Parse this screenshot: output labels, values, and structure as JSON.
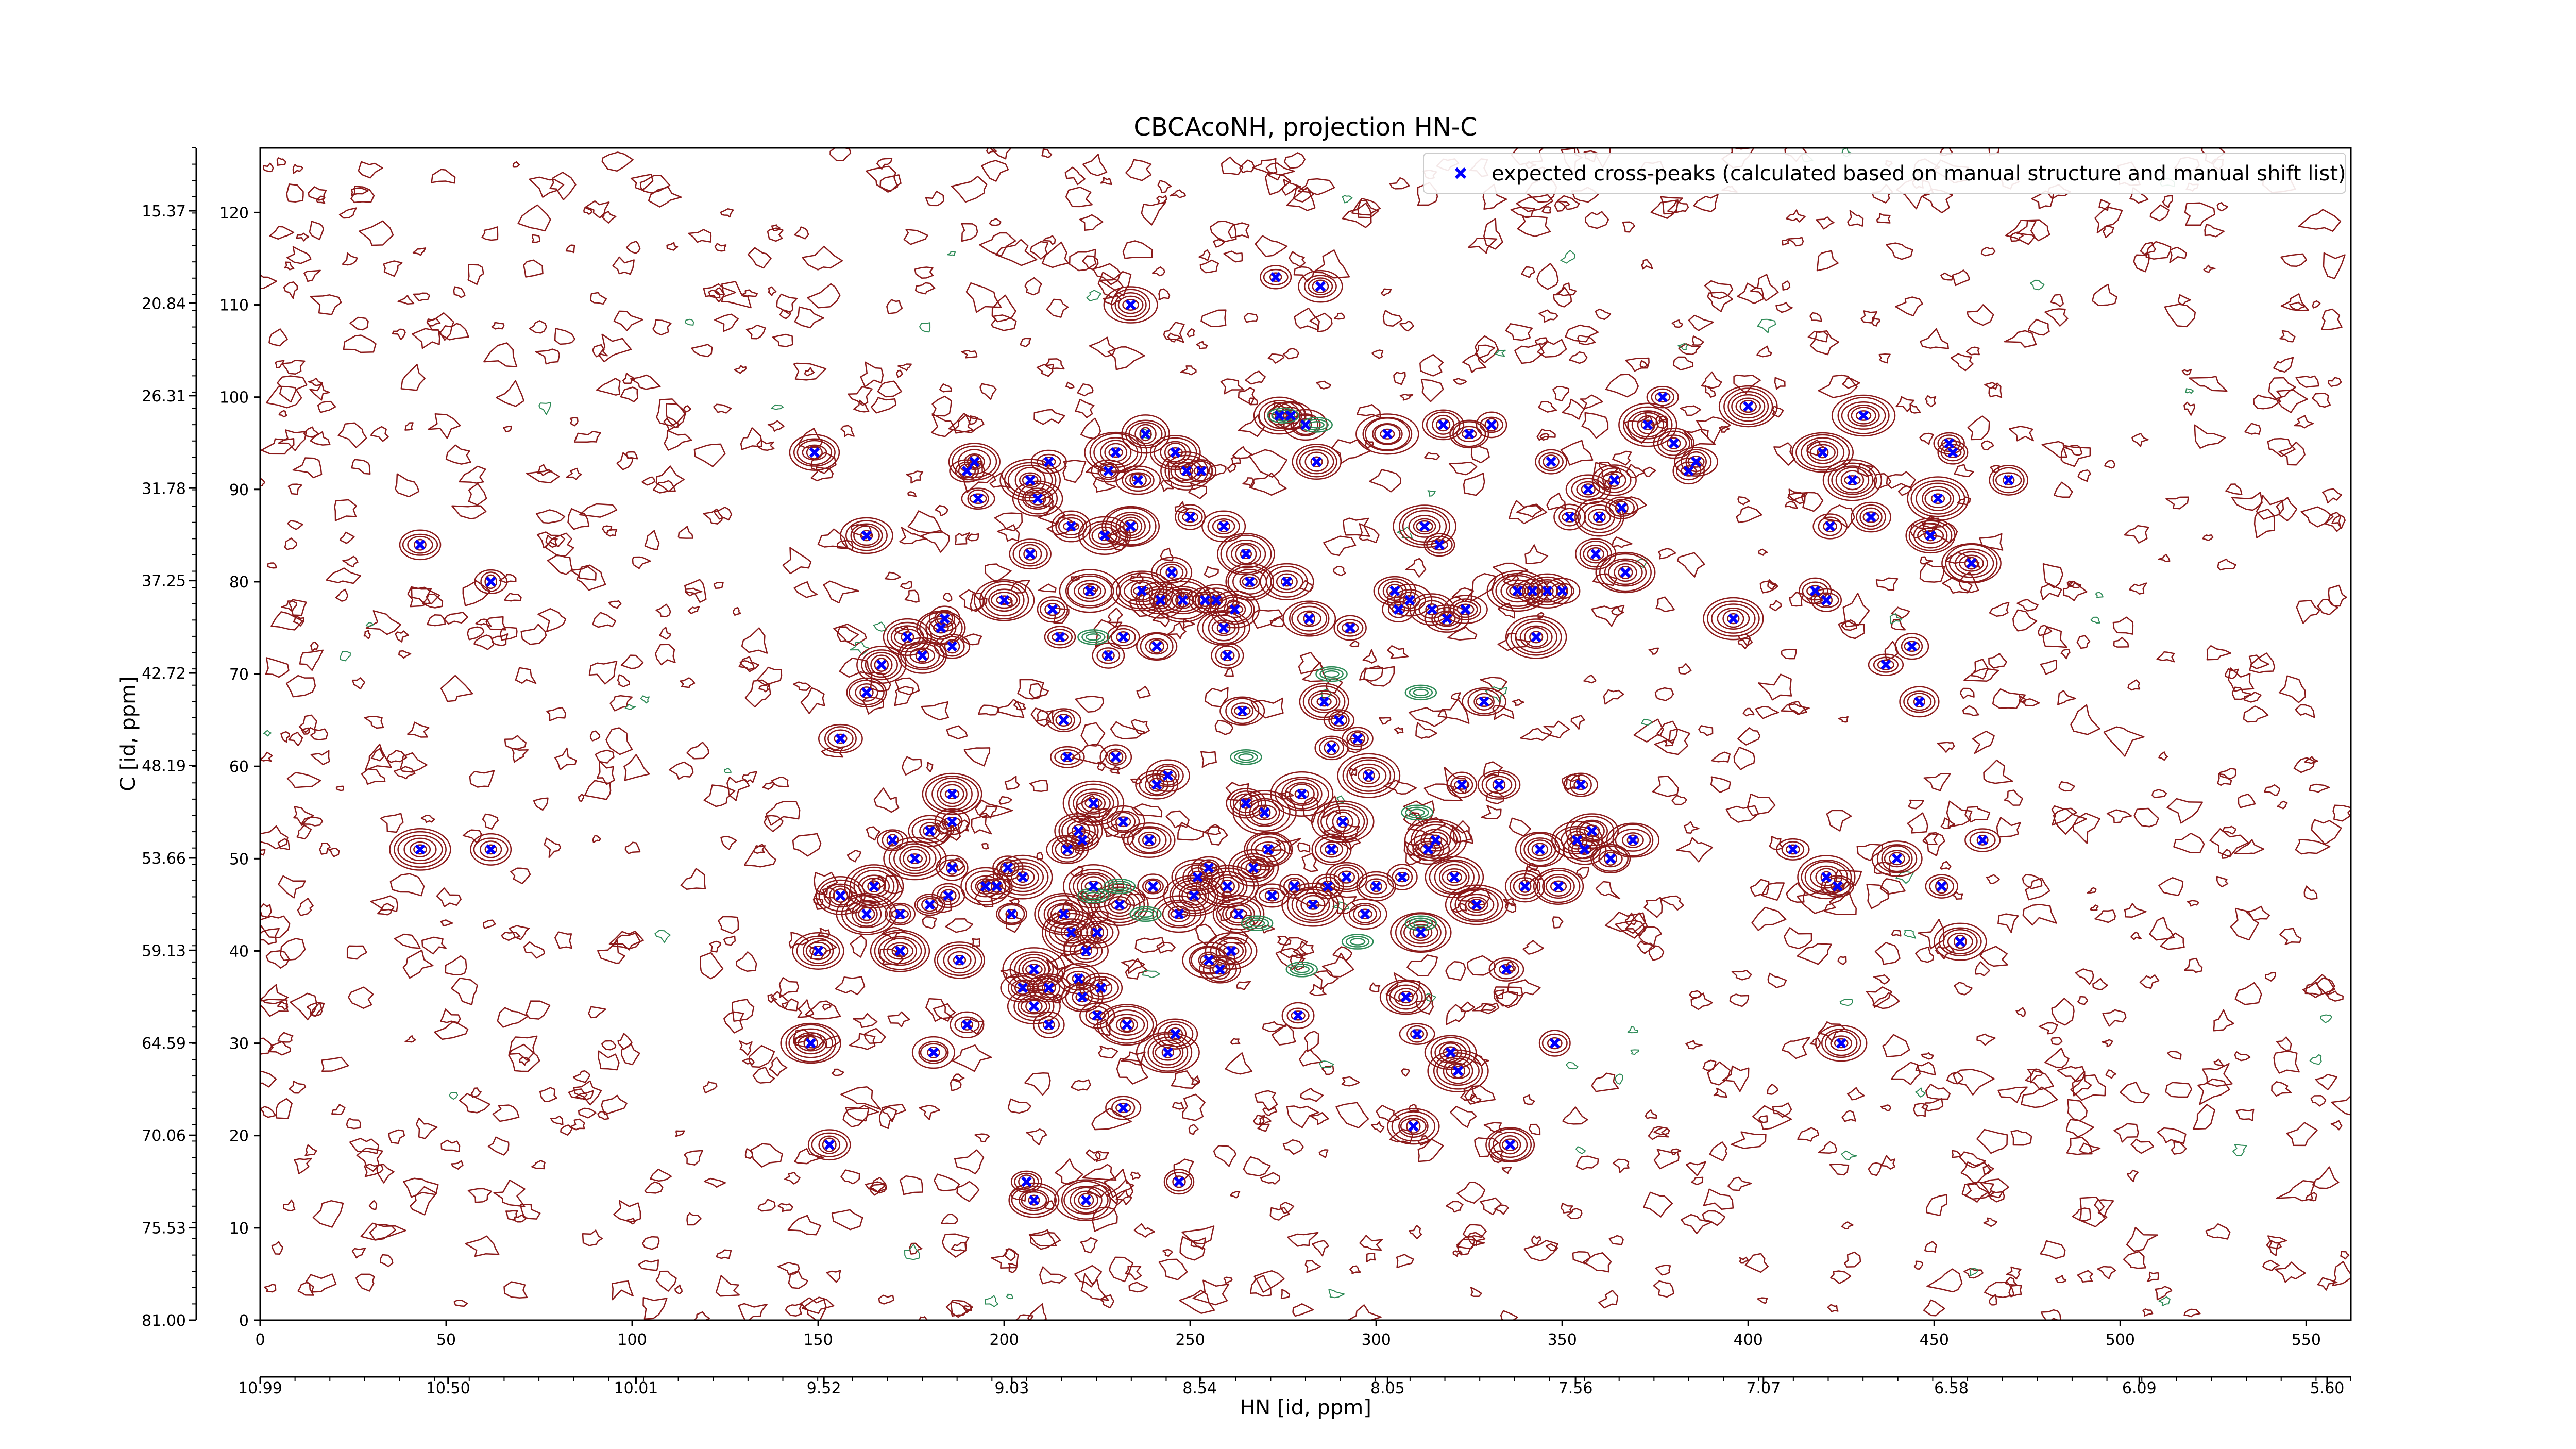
{
  "chart_data": {
    "type": "scatter",
    "title": "CBCAcoNH, projection HN-C",
    "xlabel": "HN [id, ppm]",
    "ylabel": "C [id, ppm]",
    "xlim": [
      0,
      562
    ],
    "ylim": [
      0,
      127
    ],
    "x_ticks": [
      0,
      50,
      100,
      150,
      200,
      250,
      300,
      350,
      400,
      450,
      500,
      550
    ],
    "x_tick_labels": [
      "0",
      "50",
      "100",
      "150",
      "200",
      "250",
      "300",
      "350",
      "400",
      "450",
      "500",
      "550"
    ],
    "y_ticks": [
      0,
      10,
      20,
      30,
      40,
      50,
      60,
      70,
      80,
      90,
      100,
      110,
      120
    ],
    "y_tick_labels": [
      "0",
      "10",
      "20",
      "30",
      "40",
      "50",
      "60",
      "70",
      "80",
      "90",
      "100",
      "110",
      "120"
    ],
    "secondary_x_tick_labels": [
      "10.99",
      "10.50",
      "10.01",
      "9.52",
      "9.03",
      "8.54",
      "8.05",
      "7.56",
      "7.07",
      "6.58",
      "6.09",
      "5.60"
    ],
    "secondary_y_tick_labels": [
      "81.00",
      "75.53",
      "70.06",
      "64.59",
      "59.13",
      "53.66",
      "48.19",
      "42.72",
      "37.25",
      "31.78",
      "26.31",
      "20.84",
      "15.37"
    ],
    "legend_position": "top-right",
    "colors": {
      "markers": "#0000ff",
      "contour_positive": "#8b1a1a",
      "contour_negative": "#2e8b57",
      "axis": "#000000"
    },
    "series": [
      {
        "name": "expected cross-peaks (calculated based on manual structure and manual shift list)",
        "marker": "x",
        "points": [
          [
            43,
            84
          ],
          [
            62,
            80
          ],
          [
            43,
            51
          ],
          [
            62,
            51
          ],
          [
            149,
            94
          ],
          [
            156,
            46
          ],
          [
            150,
            40
          ],
          [
            156,
            63
          ],
          [
            148,
            30
          ],
          [
            153,
            19
          ],
          [
            163,
            85
          ],
          [
            165,
            47
          ],
          [
            163,
            68
          ],
          [
            163,
            44
          ],
          [
            167,
            71
          ],
          [
            170,
            52
          ],
          [
            172,
            40
          ],
          [
            172,
            44
          ],
          [
            174,
            74
          ],
          [
            176,
            50
          ],
          [
            178,
            72
          ],
          [
            180,
            53
          ],
          [
            180,
            45
          ],
          [
            181,
            29
          ],
          [
            183,
            75
          ],
          [
            184,
            76
          ],
          [
            185,
            46
          ],
          [
            186,
            54
          ],
          [
            186,
            49
          ],
          [
            186,
            57
          ],
          [
            186,
            73
          ],
          [
            188,
            39
          ],
          [
            190,
            32
          ],
          [
            190,
            92
          ],
          [
            192,
            93
          ],
          [
            193,
            89
          ],
          [
            195,
            47
          ],
          [
            198,
            47
          ],
          [
            200,
            78
          ],
          [
            201,
            49
          ],
          [
            202,
            44
          ],
          [
            205,
            48
          ],
          [
            205,
            36
          ],
          [
            207,
            91
          ],
          [
            207,
            83
          ],
          [
            208,
            34
          ],
          [
            206,
            15
          ],
          [
            208,
            13
          ],
          [
            208,
            38
          ],
          [
            209,
            89
          ],
          [
            212,
            32
          ],
          [
            212,
            36
          ],
          [
            212,
            93
          ],
          [
            213,
            77
          ],
          [
            215,
            74
          ],
          [
            216,
            44
          ],
          [
            216,
            65
          ],
          [
            217,
            51
          ],
          [
            217,
            61
          ],
          [
            218,
            86
          ],
          [
            218,
            42
          ],
          [
            220,
            53
          ],
          [
            220,
            37
          ],
          [
            221,
            52
          ],
          [
            221,
            35
          ],
          [
            222,
            13
          ],
          [
            222,
            40
          ],
          [
            223,
            79
          ],
          [
            224,
            56
          ],
          [
            224,
            47
          ],
          [
            225,
            42
          ],
          [
            225,
            33
          ],
          [
            226,
            36
          ],
          [
            228,
            72
          ],
          [
            227,
            85
          ],
          [
            228,
            92
          ],
          [
            230,
            94
          ],
          [
            230,
            61
          ],
          [
            231,
            45
          ],
          [
            232,
            23
          ],
          [
            232,
            74
          ],
          [
            232,
            54
          ],
          [
            233,
            32
          ],
          [
            234,
            86
          ],
          [
            234,
            110
          ],
          [
            236,
            91
          ],
          [
            237,
            79
          ],
          [
            238,
            96
          ],
          [
            239,
            52
          ],
          [
            240,
            47
          ],
          [
            241,
            58
          ],
          [
            241,
            73
          ],
          [
            242,
            78
          ],
          [
            244,
            59
          ],
          [
            244,
            29
          ],
          [
            245,
            81
          ],
          [
            246,
            94
          ],
          [
            246,
            31
          ],
          [
            247,
            15
          ],
          [
            247,
            44
          ],
          [
            248,
            78
          ],
          [
            249,
            92
          ],
          [
            250,
            87
          ],
          [
            251,
            46
          ],
          [
            252,
            48
          ],
          [
            253,
            92
          ],
          [
            254,
            78
          ],
          [
            255,
            39
          ],
          [
            255,
            49
          ],
          [
            257,
            78
          ],
          [
            258,
            38
          ],
          [
            259,
            86
          ],
          [
            259,
            75
          ],
          [
            260,
            72
          ],
          [
            260,
            47
          ],
          [
            261,
            40
          ],
          [
            262,
            77
          ],
          [
            263,
            44
          ],
          [
            264,
            66
          ],
          [
            265,
            83
          ],
          [
            265,
            56
          ],
          [
            266,
            80
          ],
          [
            267,
            49
          ],
          [
            270,
            55
          ],
          [
            271,
            51
          ],
          [
            272,
            46
          ],
          [
            273,
            113
          ],
          [
            274,
            98
          ],
          [
            276,
            80
          ],
          [
            277,
            98
          ],
          [
            278,
            47
          ],
          [
            279,
            33
          ],
          [
            280,
            57
          ],
          [
            281,
            97
          ],
          [
            282,
            76
          ],
          [
            283,
            45
          ],
          [
            284,
            93
          ],
          [
            285,
            112
          ],
          [
            286,
            67
          ],
          [
            287,
            47
          ],
          [
            288,
            51
          ],
          [
            288,
            62
          ],
          [
            290,
            65
          ],
          [
            291,
            54
          ],
          [
            292,
            48
          ],
          [
            293,
            75
          ],
          [
            295,
            63
          ],
          [
            297,
            44
          ],
          [
            298,
            59
          ],
          [
            300,
            47
          ],
          [
            303,
            96
          ],
          [
            305,
            79
          ],
          [
            306,
            77
          ],
          [
            307,
            48
          ],
          [
            308,
            35
          ],
          [
            309,
            78
          ],
          [
            310,
            21
          ],
          [
            311,
            31
          ],
          [
            312,
            42
          ],
          [
            313,
            86
          ],
          [
            314,
            51
          ],
          [
            315,
            77
          ],
          [
            316,
            52
          ],
          [
            317,
            84
          ],
          [
            318,
            97
          ],
          [
            319,
            76
          ],
          [
            320,
            29
          ],
          [
            321,
            48
          ],
          [
            322,
            27
          ],
          [
            323,
            58
          ],
          [
            324,
            77
          ],
          [
            325,
            96
          ],
          [
            327,
            45
          ],
          [
            329,
            67
          ],
          [
            331,
            97
          ],
          [
            333,
            58
          ],
          [
            335,
            38
          ],
          [
            336,
            19
          ],
          [
            338,
            79
          ],
          [
            340,
            47
          ],
          [
            342,
            79
          ],
          [
            343,
            74
          ],
          [
            344,
            51
          ],
          [
            346,
            79
          ],
          [
            347,
            93
          ],
          [
            348,
            30
          ],
          [
            349,
            47
          ],
          [
            350,
            79
          ],
          [
            352,
            87
          ],
          [
            354,
            52
          ],
          [
            355,
            58
          ],
          [
            356,
            51
          ],
          [
            357,
            90
          ],
          [
            358,
            53
          ],
          [
            359,
            83
          ],
          [
            360,
            87
          ],
          [
            363,
            50
          ],
          [
            364,
            91
          ],
          [
            366,
            88
          ],
          [
            367,
            81
          ],
          [
            369,
            52
          ],
          [
            373,
            97
          ],
          [
            377,
            100
          ],
          [
            380,
            95
          ],
          [
            384,
            92
          ],
          [
            386,
            93
          ],
          [
            396,
            76
          ],
          [
            400,
            99
          ],
          [
            412,
            51
          ],
          [
            418,
            79
          ],
          [
            420,
            94
          ],
          [
            421,
            78
          ],
          [
            421,
            48
          ],
          [
            422,
            86
          ],
          [
            424,
            47
          ],
          [
            425,
            30
          ],
          [
            428,
            91
          ],
          [
            431,
            98
          ],
          [
            433,
            87
          ],
          [
            437,
            71
          ],
          [
            440,
            50
          ],
          [
            444,
            73
          ],
          [
            446,
            67
          ],
          [
            449,
            85
          ],
          [
            451,
            89
          ],
          [
            452,
            47
          ],
          [
            454,
            95
          ],
          [
            455,
            94
          ],
          [
            457,
            41
          ],
          [
            460,
            82
          ],
          [
            463,
            52
          ],
          [
            470,
            91
          ]
        ]
      }
    ]
  }
}
